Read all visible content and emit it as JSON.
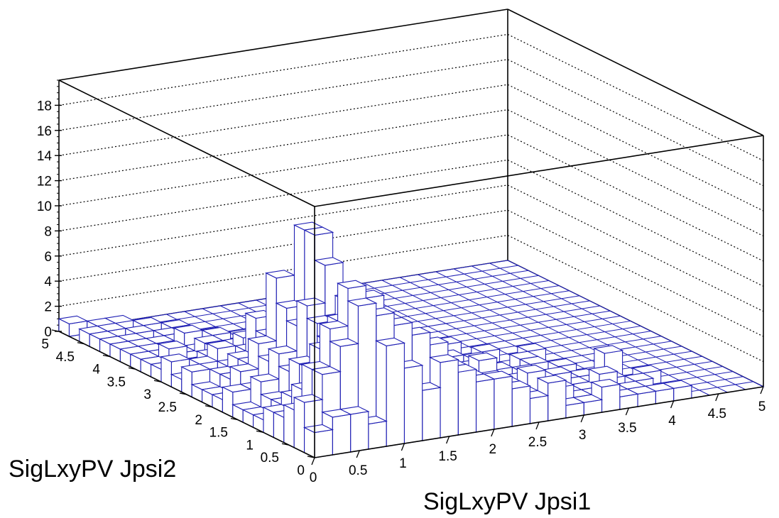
{
  "chart_data": {
    "type": "lego3d",
    "xlabel": "SigLxyPV Jpsi1",
    "ylabel": "SigLxyPV Jpsi2",
    "xlim": [
      0,
      5
    ],
    "ylim": [
      0,
      5
    ],
    "zlim": [
      0,
      20
    ],
    "xticks": [
      {
        "v": 0,
        "t": "0"
      },
      {
        "v": 0.5,
        "t": "0.5"
      },
      {
        "v": 1,
        "t": "1"
      },
      {
        "v": 1.5,
        "t": "1.5"
      },
      {
        "v": 2,
        "t": "2"
      },
      {
        "v": 2.5,
        "t": "2.5"
      },
      {
        "v": 3,
        "t": "3"
      },
      {
        "v": 3.5,
        "t": "3.5"
      },
      {
        "v": 4,
        "t": "4"
      },
      {
        "v": 4.5,
        "t": "4.5"
      },
      {
        "v": 5,
        "t": "5"
      }
    ],
    "yticks": [
      {
        "v": 0,
        "t": "0"
      },
      {
        "v": 0.5,
        "t": "0.5"
      },
      {
        "v": 1,
        "t": "1"
      },
      {
        "v": 1.5,
        "t": "1.5"
      },
      {
        "v": 2,
        "t": "2"
      },
      {
        "v": 2.5,
        "t": "2.5"
      },
      {
        "v": 3,
        "t": "3"
      },
      {
        "v": 3.5,
        "t": "3.5"
      },
      {
        "v": 4,
        "t": "4"
      },
      {
        "v": 4.5,
        "t": "4.5"
      },
      {
        "v": 5,
        "t": "5"
      }
    ],
    "zticks": [
      {
        "v": 0,
        "t": "0"
      },
      {
        "v": 2,
        "t": "2"
      },
      {
        "v": 4,
        "t": "4"
      },
      {
        "v": 6,
        "t": "6"
      },
      {
        "v": 8,
        "t": "8"
      },
      {
        "v": 10,
        "t": "10"
      },
      {
        "v": 12,
        "t": "12"
      },
      {
        "v": 14,
        "t": "14"
      },
      {
        "v": 16,
        "t": "16"
      },
      {
        "v": 18,
        "t": "18"
      }
    ],
    "nbins_x": 25,
    "nbins_y": 25,
    "grid": true,
    "bins": [
      [
        0,
        0,
        2
      ],
      [
        1,
        0,
        3
      ],
      [
        2,
        0,
        3
      ],
      [
        3,
        0,
        2
      ],
      [
        4,
        0,
        8
      ],
      [
        5,
        0,
        6
      ],
      [
        6,
        0,
        4
      ],
      [
        7,
        0,
        6
      ],
      [
        8,
        0,
        5
      ],
      [
        9,
        0,
        4
      ],
      [
        10,
        0,
        4
      ],
      [
        11,
        0,
        3
      ],
      [
        12,
        0,
        2
      ],
      [
        13,
        0,
        3
      ],
      [
        14,
        0,
        1
      ],
      [
        15,
        0,
        1
      ],
      [
        16,
        0,
        2
      ],
      [
        17,
        0,
        1
      ],
      [
        18,
        0,
        1
      ],
      [
        19,
        0,
        1
      ],
      [
        20,
        0,
        1
      ],
      [
        0,
        1,
        4
      ],
      [
        1,
        1,
        6
      ],
      [
        2,
        1,
        8
      ],
      [
        3,
        1,
        11
      ],
      [
        4,
        1,
        10
      ],
      [
        5,
        1,
        9
      ],
      [
        6,
        1,
        8
      ],
      [
        7,
        1,
        7
      ],
      [
        8,
        1,
        5
      ],
      [
        9,
        1,
        4
      ],
      [
        10,
        1,
        3
      ],
      [
        11,
        1,
        3
      ],
      [
        12,
        1,
        2
      ],
      [
        13,
        1,
        1
      ],
      [
        14,
        1,
        2
      ],
      [
        15,
        1,
        1
      ],
      [
        16,
        1,
        1
      ],
      [
        18,
        1,
        1
      ],
      [
        0,
        2,
        3
      ],
      [
        1,
        2,
        6
      ],
      [
        2,
        2,
        9
      ],
      [
        3,
        2,
        12
      ],
      [
        4,
        2,
        11
      ],
      [
        5,
        2,
        9
      ],
      [
        6,
        2,
        7
      ],
      [
        7,
        2,
        6
      ],
      [
        8,
        2,
        5
      ],
      [
        9,
        2,
        3
      ],
      [
        10,
        2,
        2
      ],
      [
        11,
        2,
        2
      ],
      [
        12,
        2,
        1
      ],
      [
        13,
        2,
        3
      ],
      [
        14,
        2,
        1
      ],
      [
        16,
        2,
        1
      ],
      [
        17,
        2,
        2
      ],
      [
        19,
        2,
        1
      ],
      [
        0,
        3,
        2
      ],
      [
        1,
        3,
        4
      ],
      [
        2,
        3,
        7
      ],
      [
        3,
        3,
        9
      ],
      [
        4,
        3,
        10
      ],
      [
        5,
        3,
        8
      ],
      [
        6,
        3,
        6
      ],
      [
        7,
        3,
        4
      ],
      [
        8,
        3,
        3
      ],
      [
        9,
        3,
        2
      ],
      [
        10,
        3,
        2
      ],
      [
        11,
        3,
        1
      ],
      [
        12,
        3,
        2
      ],
      [
        13,
        3,
        1
      ],
      [
        15,
        3,
        2
      ],
      [
        16,
        3,
        1
      ],
      [
        18,
        3,
        1
      ],
      [
        20,
        3,
        1
      ],
      [
        0,
        4,
        2
      ],
      [
        1,
        4,
        3
      ],
      [
        2,
        4,
        5
      ],
      [
        3,
        4,
        7
      ],
      [
        4,
        4,
        10
      ],
      [
        5,
        4,
        7
      ],
      [
        6,
        4,
        5
      ],
      [
        7,
        4,
        3
      ],
      [
        8,
        4,
        2
      ],
      [
        9,
        4,
        2
      ],
      [
        10,
        4,
        1
      ],
      [
        11,
        4,
        1
      ],
      [
        12,
        4,
        2
      ],
      [
        13,
        4,
        1
      ],
      [
        14,
        4,
        1
      ],
      [
        16,
        4,
        1
      ],
      [
        17,
        4,
        1
      ],
      [
        0,
        5,
        1
      ],
      [
        1,
        5,
        2
      ],
      [
        2,
        5,
        5
      ],
      [
        3,
        5,
        8
      ],
      [
        4,
        5,
        8
      ],
      [
        5,
        5,
        6
      ],
      [
        6,
        5,
        3
      ],
      [
        7,
        5,
        2
      ],
      [
        8,
        5,
        2
      ],
      [
        9,
        5,
        1
      ],
      [
        10,
        5,
        1
      ],
      [
        11,
        5,
        1
      ],
      [
        12,
        5,
        3
      ],
      [
        14,
        5,
        1
      ],
      [
        15,
        5,
        1
      ],
      [
        19,
        5,
        2
      ],
      [
        0,
        6,
        1
      ],
      [
        1,
        6,
        2
      ],
      [
        2,
        6,
        4
      ],
      [
        3,
        6,
        9
      ],
      [
        4,
        6,
        12
      ],
      [
        5,
        6,
        5
      ],
      [
        6,
        6,
        3
      ],
      [
        7,
        6,
        2
      ],
      [
        8,
        6,
        1
      ],
      [
        9,
        6,
        2
      ],
      [
        10,
        6,
        1
      ],
      [
        11,
        6,
        1
      ],
      [
        13,
        6,
        1
      ],
      [
        15,
        6,
        1
      ],
      [
        17,
        6,
        1
      ],
      [
        0,
        7,
        1
      ],
      [
        1,
        7,
        3
      ],
      [
        2,
        7,
        5
      ],
      [
        3,
        7,
        7
      ],
      [
        4,
        7,
        14
      ],
      [
        5,
        7,
        6
      ],
      [
        6,
        7,
        3
      ],
      [
        7,
        7,
        2
      ],
      [
        8,
        7,
        1
      ],
      [
        9,
        7,
        1
      ],
      [
        10,
        7,
        2
      ],
      [
        12,
        7,
        1
      ],
      [
        14,
        7,
        1
      ],
      [
        16,
        7,
        1
      ],
      [
        0,
        8,
        2
      ],
      [
        1,
        8,
        2
      ],
      [
        2,
        8,
        4
      ],
      [
        3,
        8,
        8
      ],
      [
        4,
        8,
        14
      ],
      [
        5,
        8,
        9
      ],
      [
        6,
        8,
        4
      ],
      [
        7,
        8,
        2
      ],
      [
        8,
        8,
        1
      ],
      [
        9,
        8,
        1
      ],
      [
        10,
        8,
        1
      ],
      [
        11,
        8,
        2
      ],
      [
        13,
        8,
        1
      ],
      [
        16,
        8,
        1
      ],
      [
        0,
        9,
        1
      ],
      [
        1,
        9,
        3
      ],
      [
        2,
        9,
        5
      ],
      [
        3,
        9,
        10
      ],
      [
        4,
        9,
        8
      ],
      [
        5,
        9,
        10
      ],
      [
        6,
        9,
        4
      ],
      [
        7,
        9,
        2
      ],
      [
        8,
        9,
        3
      ],
      [
        9,
        9,
        1
      ],
      [
        10,
        9,
        1
      ],
      [
        12,
        9,
        1
      ],
      [
        14,
        9,
        1
      ],
      [
        17,
        9,
        1
      ],
      [
        0,
        10,
        1
      ],
      [
        1,
        10,
        2
      ],
      [
        2,
        10,
        3
      ],
      [
        3,
        10,
        5
      ],
      [
        4,
        10,
        6
      ],
      [
        5,
        10,
        8
      ],
      [
        6,
        10,
        5
      ],
      [
        7,
        10,
        2
      ],
      [
        8,
        10,
        1
      ],
      [
        9,
        10,
        2
      ],
      [
        11,
        10,
        1
      ],
      [
        13,
        10,
        1
      ],
      [
        15,
        10,
        1
      ],
      [
        0,
        11,
        1
      ],
      [
        1,
        11,
        2
      ],
      [
        2,
        11,
        3
      ],
      [
        3,
        11,
        6
      ],
      [
        4,
        11,
        4
      ],
      [
        5,
        11,
        3
      ],
      [
        6,
        11,
        4
      ],
      [
        7,
        11,
        2
      ],
      [
        8,
        11,
        1
      ],
      [
        9,
        11,
        1
      ],
      [
        10,
        11,
        1
      ],
      [
        12,
        11,
        1
      ],
      [
        0,
        12,
        2
      ],
      [
        1,
        12,
        1
      ],
      [
        2,
        12,
        2
      ],
      [
        3,
        12,
        3
      ],
      [
        4,
        12,
        4
      ],
      [
        5,
        12,
        2
      ],
      [
        6,
        12,
        2
      ],
      [
        7,
        12,
        1
      ],
      [
        8,
        12,
        1
      ],
      [
        10,
        12,
        1
      ],
      [
        11,
        12,
        1
      ],
      [
        14,
        12,
        1
      ],
      [
        0,
        13,
        1
      ],
      [
        1,
        13,
        2
      ],
      [
        2,
        13,
        3
      ],
      [
        3,
        13,
        2
      ],
      [
        4,
        13,
        2
      ],
      [
        5,
        13,
        3
      ],
      [
        6,
        13,
        2
      ],
      [
        7,
        13,
        1
      ],
      [
        9,
        13,
        1
      ],
      [
        12,
        13,
        1
      ],
      [
        0,
        14,
        2
      ],
      [
        1,
        14,
        1
      ],
      [
        2,
        14,
        2
      ],
      [
        3,
        14,
        2
      ],
      [
        4,
        14,
        3
      ],
      [
        5,
        14,
        2
      ],
      [
        6,
        14,
        1
      ],
      [
        7,
        14,
        1
      ],
      [
        8,
        14,
        1
      ],
      [
        10,
        14,
        1
      ],
      [
        13,
        14,
        1
      ],
      [
        0,
        15,
        1
      ],
      [
        1,
        15,
        1
      ],
      [
        2,
        15,
        1
      ],
      [
        3,
        15,
        2
      ],
      [
        4,
        15,
        2
      ],
      [
        5,
        15,
        1
      ],
      [
        6,
        15,
        1
      ],
      [
        8,
        15,
        1
      ],
      [
        11,
        15,
        1
      ],
      [
        0,
        16,
        1
      ],
      [
        1,
        16,
        2
      ],
      [
        2,
        16,
        1
      ],
      [
        3,
        16,
        2
      ],
      [
        4,
        16,
        1
      ],
      [
        5,
        16,
        1
      ],
      [
        7,
        16,
        1
      ],
      [
        9,
        16,
        1
      ],
      [
        0,
        17,
        1
      ],
      [
        1,
        17,
        1
      ],
      [
        2,
        17,
        1
      ],
      [
        3,
        17,
        1
      ],
      [
        4,
        17,
        2
      ],
      [
        5,
        17,
        1
      ],
      [
        6,
        17,
        1
      ],
      [
        0,
        18,
        1
      ],
      [
        1,
        18,
        1
      ],
      [
        2,
        18,
        1
      ],
      [
        3,
        18,
        2
      ],
      [
        4,
        18,
        1
      ],
      [
        6,
        18,
        1
      ],
      [
        0,
        19,
        1
      ],
      [
        1,
        19,
        1
      ],
      [
        2,
        19,
        1
      ],
      [
        3,
        19,
        1
      ],
      [
        5,
        19,
        1
      ],
      [
        0,
        20,
        1
      ],
      [
        1,
        20,
        1
      ],
      [
        3,
        20,
        1
      ],
      [
        4,
        20,
        1
      ],
      [
        0,
        21,
        1
      ],
      [
        2,
        21,
        1
      ],
      [
        4,
        21,
        1
      ],
      [
        0,
        22,
        1
      ],
      [
        1,
        22,
        1
      ],
      [
        3,
        22,
        1
      ],
      [
        1,
        23,
        1
      ],
      [
        2,
        23,
        1
      ],
      [
        0,
        24,
        1
      ]
    ]
  }
}
